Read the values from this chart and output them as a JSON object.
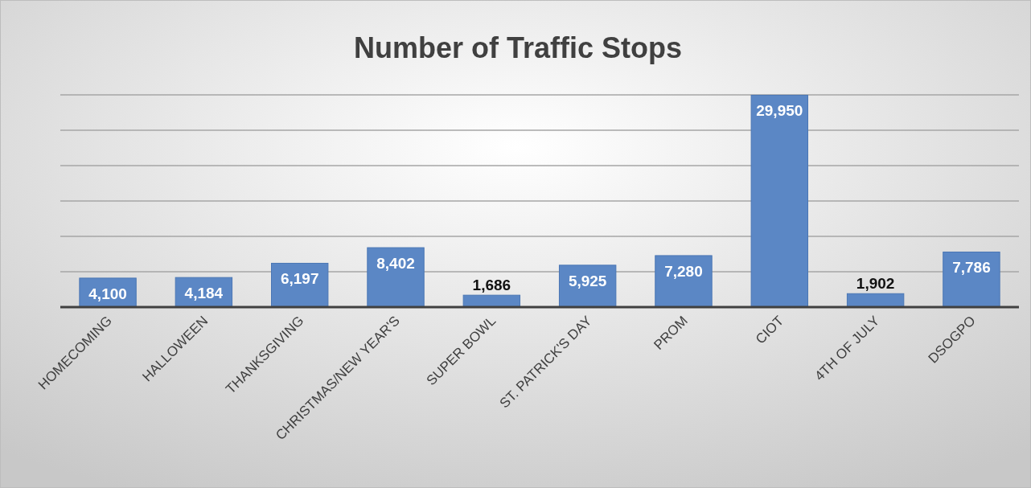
{
  "chart_data": {
    "type": "bar",
    "title": "Number of Traffic Stops",
    "categories": [
      "HOMECOMING",
      "HALLOWEEN",
      "THANKSGIVING",
      "CHRISTMAS/NEW YEAR'S",
      "SUPER BOWL",
      "ST. PATRICK'S DAY",
      "PROM",
      "CIOT",
      "4TH OF JULY",
      "DSOGPO"
    ],
    "values": [
      4100,
      4184,
      6197,
      8402,
      1686,
      5925,
      7280,
      29950,
      1902,
      7786
    ],
    "value_labels": [
      "4,100",
      "4,184",
      "6,197",
      "8,402",
      "1,686",
      "5,925",
      "7,280",
      "29,950",
      "1,902",
      "7,786"
    ],
    "color": "#5b87c5",
    "tick_labels": "x",
    "grid": "y"
  }
}
